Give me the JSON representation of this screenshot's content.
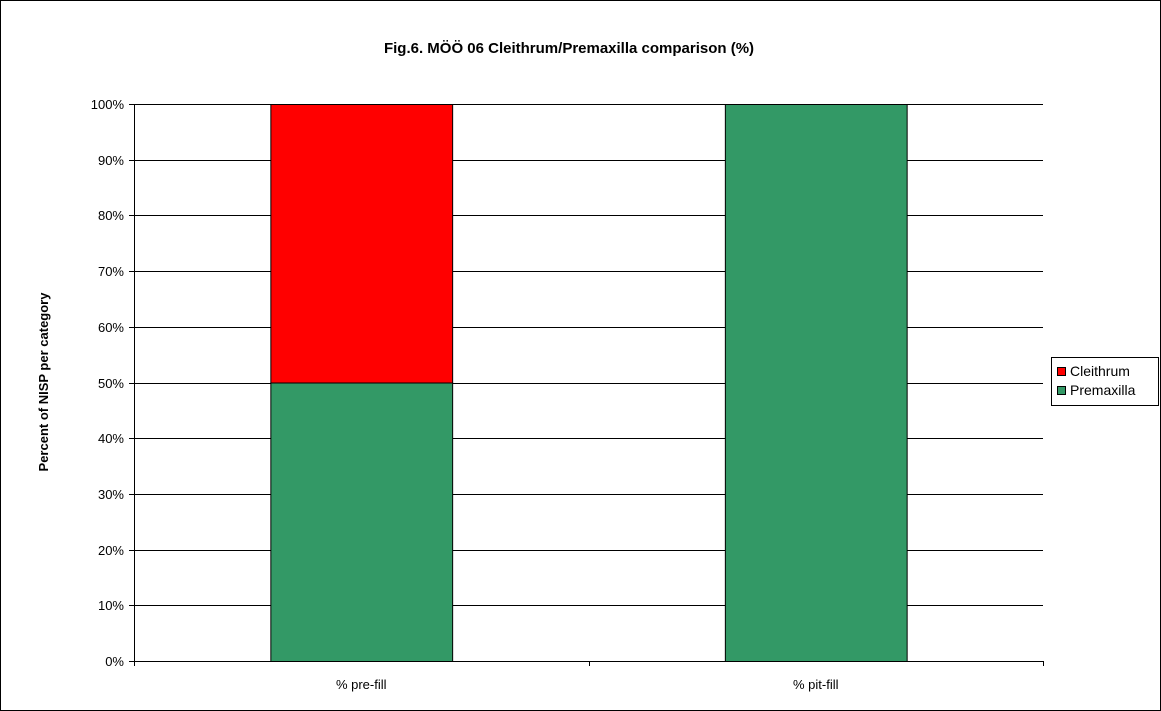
{
  "chart_data": {
    "type": "bar",
    "stacked": true,
    "title": "Fig.6. MÖÖ 06 Cleithrum/Premaxilla comparison (%)",
    "xlabel": "",
    "ylabel": "Percent of NISP per category",
    "categories": [
      "% pre-fill",
      "% pit-fill"
    ],
    "ylim": [
      0,
      100
    ],
    "yticks": [
      0,
      10,
      20,
      30,
      40,
      50,
      60,
      70,
      80,
      90,
      100
    ],
    "ytick_labels": [
      "0%",
      "10%",
      "20%",
      "30%",
      "40%",
      "50%",
      "60%",
      "70%",
      "80%",
      "90%",
      "100%"
    ],
    "series": [
      {
        "name": "Premaxilla",
        "values": [
          50,
          100
        ],
        "color": "#339966"
      },
      {
        "name": "Cleithrum",
        "values": [
          50,
          0
        ],
        "color": "#FF0000"
      }
    ],
    "legend_order": [
      "Cleithrum",
      "Premaxilla"
    ],
    "legend_position": "right",
    "grid": true
  }
}
